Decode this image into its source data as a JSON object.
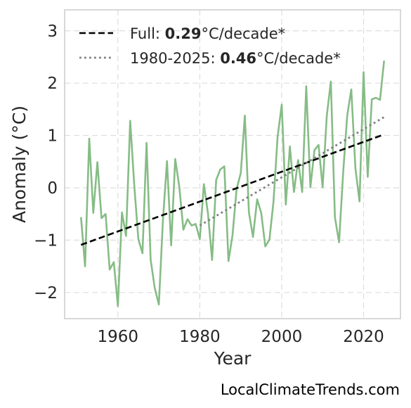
{
  "chart_data": {
    "type": "line",
    "xlabel": "Year",
    "ylabel": "Anomaly (°C)",
    "xlim": [
      1947,
      2029
    ],
    "ylim": [
      -2.5,
      3.4
    ],
    "xticks": [
      1960,
      1980,
      2000,
      2020
    ],
    "yticks": [
      -2,
      -1,
      0,
      1,
      2,
      3
    ],
    "ytick_labels": [
      "−2",
      "−1",
      "0",
      "1",
      "2",
      "3"
    ],
    "grid": true,
    "legend_position": "top-left",
    "series": [
      {
        "type": "line",
        "color": "#86bc86",
        "x": [
          1951,
          1952,
          1953,
          1954,
          1955,
          1956,
          1957,
          1958,
          1959,
          1960,
          1961,
          1962,
          1963,
          1964,
          1965,
          1966,
          1967,
          1968,
          1969,
          1970,
          1971,
          1972,
          1973,
          1974,
          1975,
          1976,
          1977,
          1978,
          1979,
          1980,
          1981,
          1982,
          1983,
          1984,
          1985,
          1986,
          1987,
          1988,
          1989,
          1990,
          1991,
          1992,
          1993,
          1994,
          1995,
          1996,
          1997,
          1998,
          1999,
          2000,
          2001,
          2002,
          2003,
          2004,
          2005,
          2006,
          2007,
          2008,
          2009,
          2010,
          2011,
          2012,
          2013,
          2014,
          2015,
          2016,
          2017,
          2018,
          2019,
          2020,
          2021,
          2022,
          2023,
          2024,
          2025
        ],
        "y": [
          -0.56,
          -1.5,
          0.94,
          -0.48,
          0.49,
          -0.58,
          -0.5,
          -1.56,
          -1.42,
          -2.26,
          -0.47,
          -0.92,
          1.28,
          0.05,
          -0.98,
          -1.25,
          0.86,
          -1.37,
          -1.91,
          -2.23,
          -0.62,
          0.51,
          -1.1,
          0.55,
          0.02,
          -0.8,
          -0.6,
          -0.72,
          -0.69,
          -0.98,
          0.07,
          -0.49,
          -1.38,
          0.15,
          0.35,
          0.41,
          -1.4,
          -0.9,
          -0.02,
          0.28,
          1.38,
          -0.47,
          -0.94,
          -0.22,
          -0.48,
          -1.12,
          -0.99,
          -0.26,
          0.97,
          1.59,
          -0.32,
          0.79,
          -0.08,
          0.53,
          -0.08,
          1.94,
          0.01,
          0.72,
          0.82,
          0.01,
          1.37,
          2.03,
          -0.56,
          -1.04,
          0.28,
          1.38,
          1.88,
          0.37,
          -0.26,
          2.21,
          0.21,
          1.69,
          1.72,
          1.68,
          2.43
        ]
      },
      {
        "type": "trend",
        "style": "dashed",
        "color": "#000000",
        "x": [
          1951,
          2025
        ],
        "y": [
          -1.09,
          1.02
        ]
      },
      {
        "type": "trend",
        "style": "dotted",
        "color": "#808080",
        "x": [
          1980,
          2025
        ],
        "y": [
          -0.72,
          1.35
        ]
      }
    ],
    "legend": [
      {
        "style": "dashed",
        "color": "#000000",
        "prefix": "Full: ",
        "value": "0.29",
        "suffix": "°C/decade*"
      },
      {
        "style": "dotted",
        "color": "#808080",
        "prefix": "1980-2025: ",
        "value": "0.46",
        "suffix": "°C/decade*"
      }
    ]
  },
  "watermark": "LocalClimateTrends.com"
}
